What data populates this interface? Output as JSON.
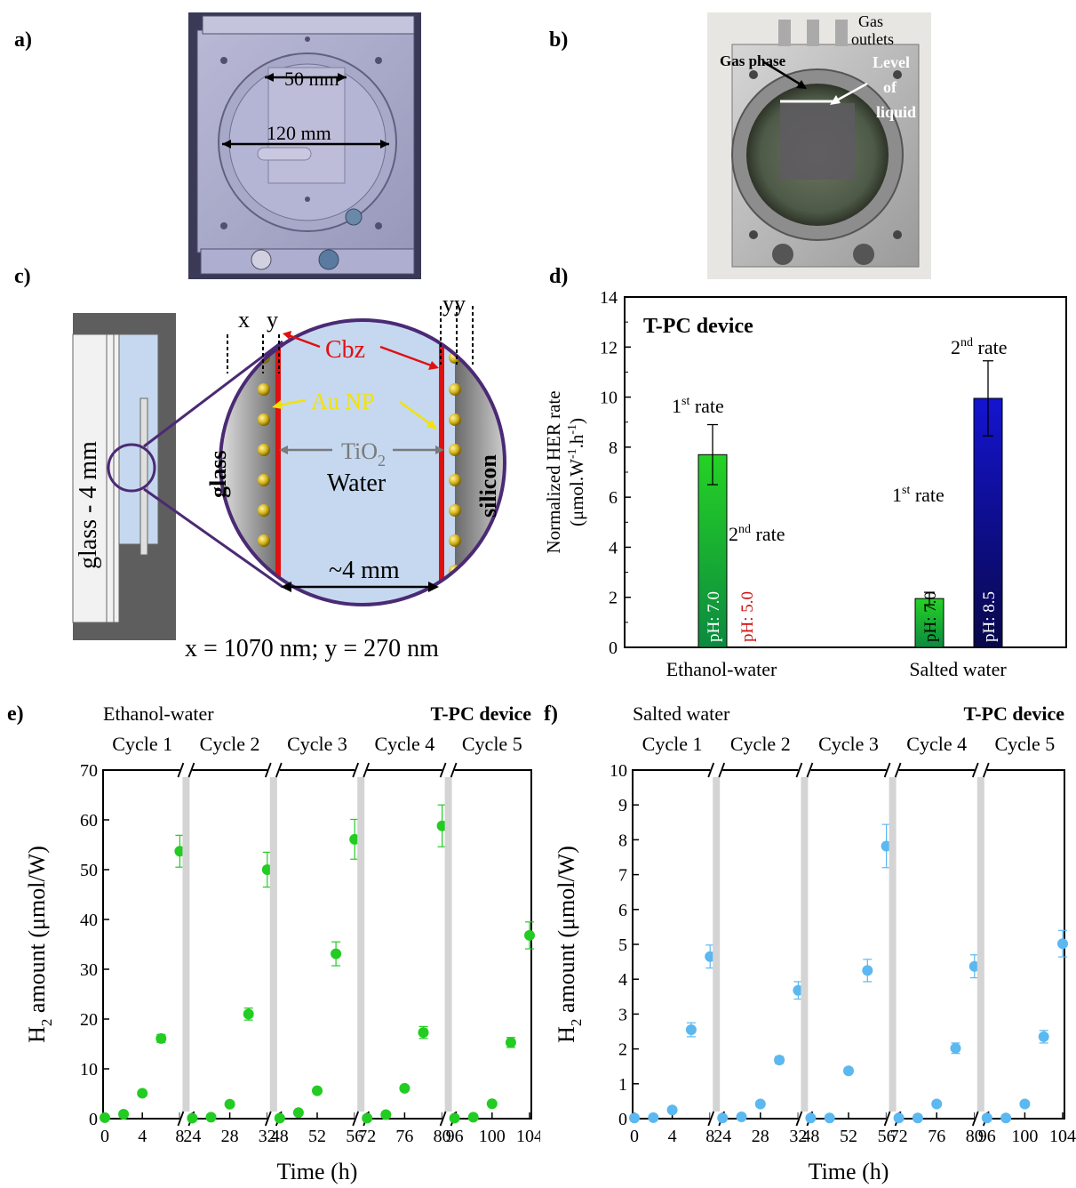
{
  "panels": {
    "a": "a)",
    "b": "b)",
    "c": "c)",
    "d": "d)",
    "e": "e)",
    "f": "f)"
  },
  "panel_a": {
    "dim_inner": "50 mm",
    "dim_outer": "120 mm"
  },
  "panel_b": {
    "gas_outlets_line1": "Gas",
    "gas_outlets_line2": "outlets",
    "gas_phase": "Gas phase",
    "level_line1": "Level",
    "level_line2": "of",
    "level_line3": "liquid"
  },
  "panel_c": {
    "glass_4mm": "glass - 4 mm",
    "x_label": "x",
    "y_label": "y",
    "yy_label": "yy",
    "cbz": "Cbz",
    "au_np": "Au NP",
    "tio2": "TiO",
    "tio2_sub": "2",
    "water": "Water",
    "glass": "glass",
    "silicon": "silicon",
    "gap": "~4 mm",
    "caption": "x = 1070 nm; y = 270 nm"
  },
  "chart_data": [
    {
      "id": "d",
      "type": "bar",
      "title": "T-PC device",
      "ylabel_line1": "Normalized HER rate",
      "ylabel_line2_pre": "(μmol.W",
      "ylabel_sup1": "-1",
      "ylabel_mid": ".h",
      "ylabel_sup2": "-1",
      "ylabel_post": ")",
      "ylim": [
        0,
        14
      ],
      "yticks": [
        "0",
        "2",
        "4",
        "6",
        "8",
        "10",
        "12",
        "14"
      ],
      "categories": [
        "Ethanol-water",
        "Salted water"
      ],
      "bars": [
        {
          "category": "Ethanol-water",
          "rate": "1st",
          "value": 7.7,
          "error": 1.2,
          "color": "#1fc21f",
          "ph": "pH: 7.0",
          "ph_color": "#ffffff"
        },
        {
          "category": "Ethanol-water",
          "rate": "2nd",
          "value": 0.0,
          "error": 0,
          "color": "#1fc21f",
          "ph": "pH: 5.0",
          "ph_color": "#d01010"
        },
        {
          "category": "Salted water",
          "rate": "1st",
          "value": 1.95,
          "error": 0.25,
          "color": "#1fc21f",
          "ph": "pH: 7.0",
          "ph_color": "#000000"
        },
        {
          "category": "Salted water",
          "rate": "2nd",
          "value": 9.95,
          "error": 1.5,
          "color": "#1010c0",
          "ph": "pH: 8.5",
          "ph_color": "#ffffff"
        }
      ],
      "annotations": {
        "rate1": "1",
        "rate1_sup": "st",
        "rate1_post": " rate",
        "rate2": "2",
        "rate2_sup": "nd",
        "rate2_post": " rate"
      }
    },
    {
      "id": "e",
      "type": "scatter",
      "dataset": "Ethanol-water",
      "device": "T-PC device",
      "cycles": [
        "Cycle 1",
        "Cycle 2",
        "Cycle 3",
        "Cycle 4",
        "Cycle 5"
      ],
      "xlabel": "Time (h)",
      "ylabel_pre": "H",
      "ylabel_sub": "2",
      "ylabel_post": " amount (μmol/W)",
      "ylim": [
        0,
        70
      ],
      "yticks": [
        "0",
        "10",
        "20",
        "30",
        "40",
        "50",
        "60",
        "70"
      ],
      "color": "#22cc22",
      "segments": [
        {
          "xticks": [
            "0",
            "4",
            "8"
          ],
          "x": [
            0,
            2,
            4,
            6,
            8
          ],
          "y": [
            0.2,
            0.9,
            5.1,
            16.1,
            53.7
          ],
          "err": [
            0.2,
            0.3,
            0.5,
            0.8,
            3.2
          ]
        },
        {
          "xticks": [
            "24",
            "28",
            "32"
          ],
          "x": [
            24,
            26,
            28,
            30,
            32
          ],
          "y": [
            0.1,
            0.3,
            2.9,
            21.0,
            50.0
          ],
          "err": [
            0.1,
            0.2,
            0.4,
            1.2,
            3.5
          ]
        },
        {
          "xticks": [
            "48",
            "52",
            "56"
          ],
          "x": [
            48,
            50,
            52,
            54,
            56
          ],
          "y": [
            0.1,
            1.2,
            5.6,
            33.1,
            56.1
          ],
          "err": [
            0.1,
            0.3,
            0.5,
            2.4,
            4.0
          ]
        },
        {
          "xticks": [
            "72",
            "76",
            "80"
          ],
          "x": [
            72,
            74,
            76,
            78,
            80
          ],
          "y": [
            0.1,
            0.8,
            6.1,
            17.3,
            58.8
          ],
          "err": [
            0.1,
            0.3,
            0.5,
            1.2,
            4.2
          ]
        },
        {
          "xticks": [
            "96",
            "100",
            "104"
          ],
          "x": [
            96,
            98,
            100,
            102,
            104
          ],
          "y": [
            0.1,
            0.3,
            3.0,
            15.3,
            36.8
          ],
          "err": [
            0.1,
            0.2,
            0.4,
            1.0,
            2.7
          ]
        }
      ]
    },
    {
      "id": "f",
      "type": "scatter",
      "dataset": "Salted water",
      "device": "T-PC device",
      "cycles": [
        "Cycle 1",
        "Cycle 2",
        "Cycle 3",
        "Cycle 4",
        "Cycle 5"
      ],
      "xlabel": "Time (h)",
      "ylabel_pre": "H",
      "ylabel_sub": "2",
      "ylabel_post": " amount (μmol/W)",
      "ylim": [
        0,
        10
      ],
      "yticks": [
        "0",
        "1",
        "2",
        "3",
        "4",
        "5",
        "6",
        "7",
        "8",
        "9",
        "10"
      ],
      "color": "#5bb8f0",
      "segments": [
        {
          "xticks": [
            "0",
            "4",
            "8"
          ],
          "x": [
            0,
            2,
            4,
            6,
            8
          ],
          "y": [
            0.02,
            0.03,
            0.25,
            2.55,
            4.65
          ],
          "err": [
            0.02,
            0.02,
            0.05,
            0.2,
            0.33
          ]
        },
        {
          "xticks": [
            "24",
            "28",
            "32"
          ],
          "x": [
            24,
            26,
            28,
            30,
            32
          ],
          "y": [
            0.02,
            0.05,
            0.42,
            1.68,
            3.68
          ],
          "err": [
            0.02,
            0.02,
            0.05,
            0.1,
            0.25
          ]
        },
        {
          "xticks": [
            "48",
            "52",
            "56"
          ],
          "x": [
            48,
            50,
            52,
            54,
            56
          ],
          "y": [
            0.02,
            0.02,
            1.37,
            4.25,
            7.82
          ],
          "err": [
            0.02,
            0.02,
            0.08,
            0.32,
            0.62
          ]
        },
        {
          "xticks": [
            "72",
            "76",
            "80"
          ],
          "x": [
            72,
            74,
            76,
            78,
            80
          ],
          "y": [
            0.02,
            0.02,
            0.42,
            2.02,
            4.37
          ],
          "err": [
            0.02,
            0.02,
            0.05,
            0.15,
            0.33
          ]
        },
        {
          "xticks": [
            "96",
            "100",
            "104"
          ],
          "x": [
            96,
            98,
            100,
            102,
            104
          ],
          "y": [
            0.02,
            0.02,
            0.42,
            2.35,
            5.02
          ],
          "err": [
            0.02,
            0.02,
            0.05,
            0.18,
            0.38
          ]
        }
      ]
    }
  ]
}
